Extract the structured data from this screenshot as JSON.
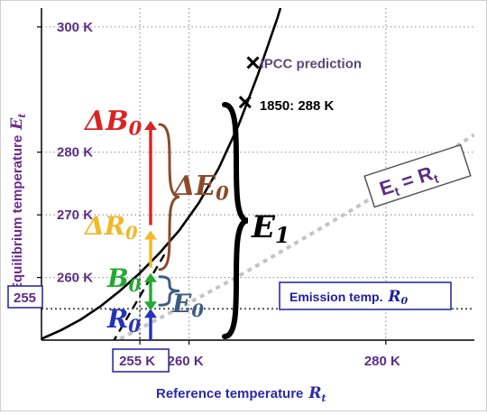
{
  "chart_data": {
    "type": "line",
    "title": "",
    "xlabel": "Reference temperature",
    "xlabel_symbol": "R",
    "xlabel_sub": "t",
    "ylabel": "Equilibrium temperature",
    "ylabel_symbol": "E",
    "ylabel_sub": "t",
    "xlim": [
      245,
      289
    ],
    "ylim": [
      250,
      303
    ],
    "x_ticks": [
      255,
      260,
      280
    ],
    "x_tick_labels": [
      "255 K",
      "260 K",
      "280 K"
    ],
    "y_ticks": [
      260,
      270,
      280,
      300
    ],
    "y_tick_labels": [
      "260 K",
      "270 K",
      "280 K",
      "300 K"
    ],
    "grid": "dotted",
    "series": [
      {
        "style": "solid",
        "x": [
          245,
          247,
          249,
          251,
          253,
          255,
          257,
          259,
          261,
          263,
          265,
          267,
          269,
          271
        ],
        "y": [
          250.2,
          251.6,
          253.3,
          255.4,
          257.9,
          260.7,
          263.9,
          267.5,
          271.9,
          277.4,
          284.2,
          292.4,
          301.5,
          312
        ]
      },
      {
        "style": "dashed",
        "x": [
          252.2,
          253.5,
          255,
          256.3,
          257.7
        ],
        "y": [
          249.5,
          253,
          257,
          260.5,
          264.2
        ]
      },
      {
        "style": "dotted-gray",
        "x": [
          253,
          257,
          261,
          265,
          269,
          273,
          277,
          281,
          285,
          289
        ],
        "y": [
          250.2,
          253.5,
          256.8,
          260.2,
          263.8,
          267.5,
          271.2,
          275,
          278.8,
          282.8
        ]
      }
    ],
    "markers": [
      {
        "x": 265.7,
        "y": 288.0,
        "label": "1850: 288 K"
      },
      {
        "x": 266.5,
        "y": 294.3,
        "label": "IPCC prediction"
      }
    ],
    "reference_lines": [
      {
        "orientation": "vertical",
        "x": 255
      },
      {
        "orientation": "horizontal",
        "y": 255
      }
    ],
    "arrows": [
      {
        "name": "R",
        "label": "R",
        "sub": "0",
        "from": 250,
        "to": 255,
        "color": "#2233bb"
      },
      {
        "name": "B",
        "label": "B",
        "sub": "0",
        "from": 255,
        "to": 260.7,
        "color": "#22aa33"
      },
      {
        "name": "dR",
        "label": "ΔR",
        "sub": "0",
        "from": 260.7,
        "to": 267.5,
        "color": "#f2b825"
      },
      {
        "name": "dB",
        "label": "ΔB",
        "sub": "0",
        "from": 267.5,
        "to": 285,
        "color": "#dd2222"
      }
    ],
    "braces": [
      {
        "name": "E0",
        "label": "E",
        "sub": "0",
        "from": 255,
        "to": 260.7,
        "color": "#3d5d80"
      },
      {
        "name": "dE0",
        "label": "ΔE",
        "sub": "0",
        "from": 260.7,
        "to": 285,
        "color": "#8b4a2a"
      },
      {
        "name": "E1",
        "label": "E",
        "sub": "1",
        "from": 255,
        "to": 285,
        "color": "#000000"
      }
    ],
    "callouts": {
      "emission_label": "Emission temp.",
      "emission_symbol": "R",
      "emission_sub": "0",
      "left_box": "255",
      "identity_lhs": "E",
      "identity_lhs_sub": "t",
      "identity_eq": "=",
      "identity_rhs": "R",
      "identity_rhs_sub": "t"
    },
    "colors": {
      "tick_purple": "#5b2f86",
      "axis_title_blue": "#2a2aa8",
      "ylabel_purple": "#6a2c8f",
      "box_blue": "#1f1fa0",
      "identity_purple": "#5b2f86"
    }
  }
}
